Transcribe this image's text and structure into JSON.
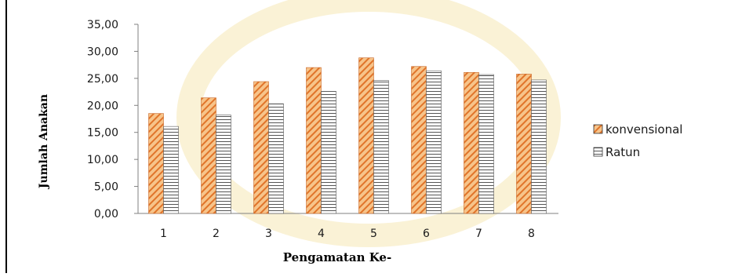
{
  "colors": {
    "konvensional_fill": "#f7c48a",
    "konvensional_stripe": "#e0742a",
    "ratun_fill": "#ffffff",
    "ratun_stripe": "#555555",
    "axis": "#808080",
    "text": "#1a1a1a",
    "watermark": "#f1d98a"
  },
  "chart_data": {
    "type": "bar",
    "title": "",
    "xlabel": "Pengamatan Ke-",
    "ylabel": "Jumlah Anakan",
    "categories": [
      "1",
      "2",
      "3",
      "4",
      "5",
      "6",
      "7",
      "8"
    ],
    "series": [
      {
        "name": "konvensional",
        "values": [
          18.5,
          21.4,
          24.4,
          27.0,
          28.8,
          27.2,
          26.1,
          25.8
        ]
      },
      {
        "name": "Ratun",
        "values": [
          16.1,
          18.2,
          20.3,
          22.6,
          24.6,
          26.4,
          25.7,
          24.7
        ]
      }
    ],
    "ylim": [
      0,
      35
    ],
    "yticks": [
      "0,00",
      "5,00",
      "10,00",
      "15,00",
      "20,00",
      "25,00",
      "30,00",
      "35,00"
    ],
    "legend_position": "right",
    "grid": false
  }
}
